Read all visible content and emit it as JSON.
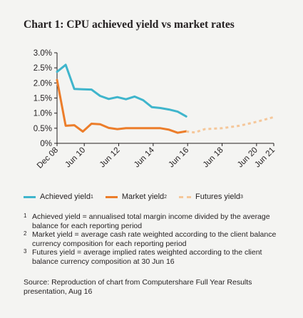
{
  "title": "Chart 1: CPU achieved yield vs market rates",
  "colors": {
    "achieved": "#3fb5cc",
    "market": "#ec7d2a",
    "futures": "#f5c79a",
    "axis": "#231f20",
    "background": "#f4f4f2"
  },
  "chart_data": {
    "type": "line",
    "title": "Chart 1: CPU achieved yield vs market rates",
    "xlabel": "",
    "ylabel": "",
    "ylim": [
      0,
      3.0
    ],
    "y_ticks": [
      0,
      0.5,
      1.0,
      1.5,
      2.0,
      2.5,
      3.0
    ],
    "y_tick_labels": [
      "0%",
      "0.5%",
      "1.0%",
      "1.5%",
      "2.0%",
      "2.5%",
      "3.0%"
    ],
    "xlim": [
      2008.92,
      2021.5
    ],
    "x_ticks": [
      2008.92,
      2010.5,
      2012.5,
      2014.5,
      2016.5,
      2018.5,
      2020.5,
      2021.5
    ],
    "x_tick_labels": [
      "Dec 08",
      "Jun 10",
      "Jun 12",
      "Jun 14",
      "Jun 16",
      "Jun 18",
      "Jun 20",
      "Jun 21"
    ],
    "grid": false,
    "legend_position": "bottom",
    "series": [
      {
        "name": "Achieved yield",
        "style": "solid",
        "x": [
          2008.92,
          2009.42,
          2009.92,
          2010.42,
          2010.92,
          2011.42,
          2011.92,
          2012.42,
          2012.92,
          2013.42,
          2013.92,
          2014.42,
          2014.92,
          2015.42,
          2015.92,
          2016.42
        ],
        "y": [
          2.37,
          2.6,
          1.8,
          1.79,
          1.78,
          1.57,
          1.47,
          1.53,
          1.46,
          1.55,
          1.43,
          1.2,
          1.17,
          1.12,
          1.05,
          0.89
        ]
      },
      {
        "name": "Market yield",
        "style": "solid",
        "x": [
          2008.92,
          2009.42,
          2009.92,
          2010.42,
          2010.92,
          2011.42,
          2011.92,
          2012.42,
          2012.92,
          2013.42,
          2013.92,
          2014.42,
          2014.92,
          2015.42,
          2015.92,
          2016.42
        ],
        "y": [
          2.1,
          0.58,
          0.6,
          0.39,
          0.65,
          0.63,
          0.51,
          0.47,
          0.5,
          0.5,
          0.5,
          0.5,
          0.5,
          0.45,
          0.35,
          0.4
        ]
      },
      {
        "name": "Futures yield",
        "style": "dashed",
        "x": [
          2016.42,
          2016.92,
          2017.5,
          2018.5,
          2019.5,
          2020.5,
          2021.5
        ],
        "y": [
          0.39,
          0.36,
          0.47,
          0.5,
          0.58,
          0.71,
          0.87
        ]
      }
    ]
  },
  "legend": [
    {
      "label": "Achieved yield",
      "marker": "1"
    },
    {
      "label": "Market yield",
      "marker": "2"
    },
    {
      "label": "Futures yield",
      "marker": "3"
    }
  ],
  "footnotes": [
    {
      "marker": "1",
      "text": "Achieved yield = annualised total margin income divided by the average balance for each reporting period"
    },
    {
      "marker": "2",
      "text": "Market yield = average cash rate weighted according to the client balance currency composition for each reporting period"
    },
    {
      "marker": "3",
      "text": "Futures yield = average implied rates weighted according to the client balance currency composition at 30 Jun 16"
    }
  ],
  "source": "Source: Reproduction of chart from Computershare Full Year Results presentation, Aug 16"
}
